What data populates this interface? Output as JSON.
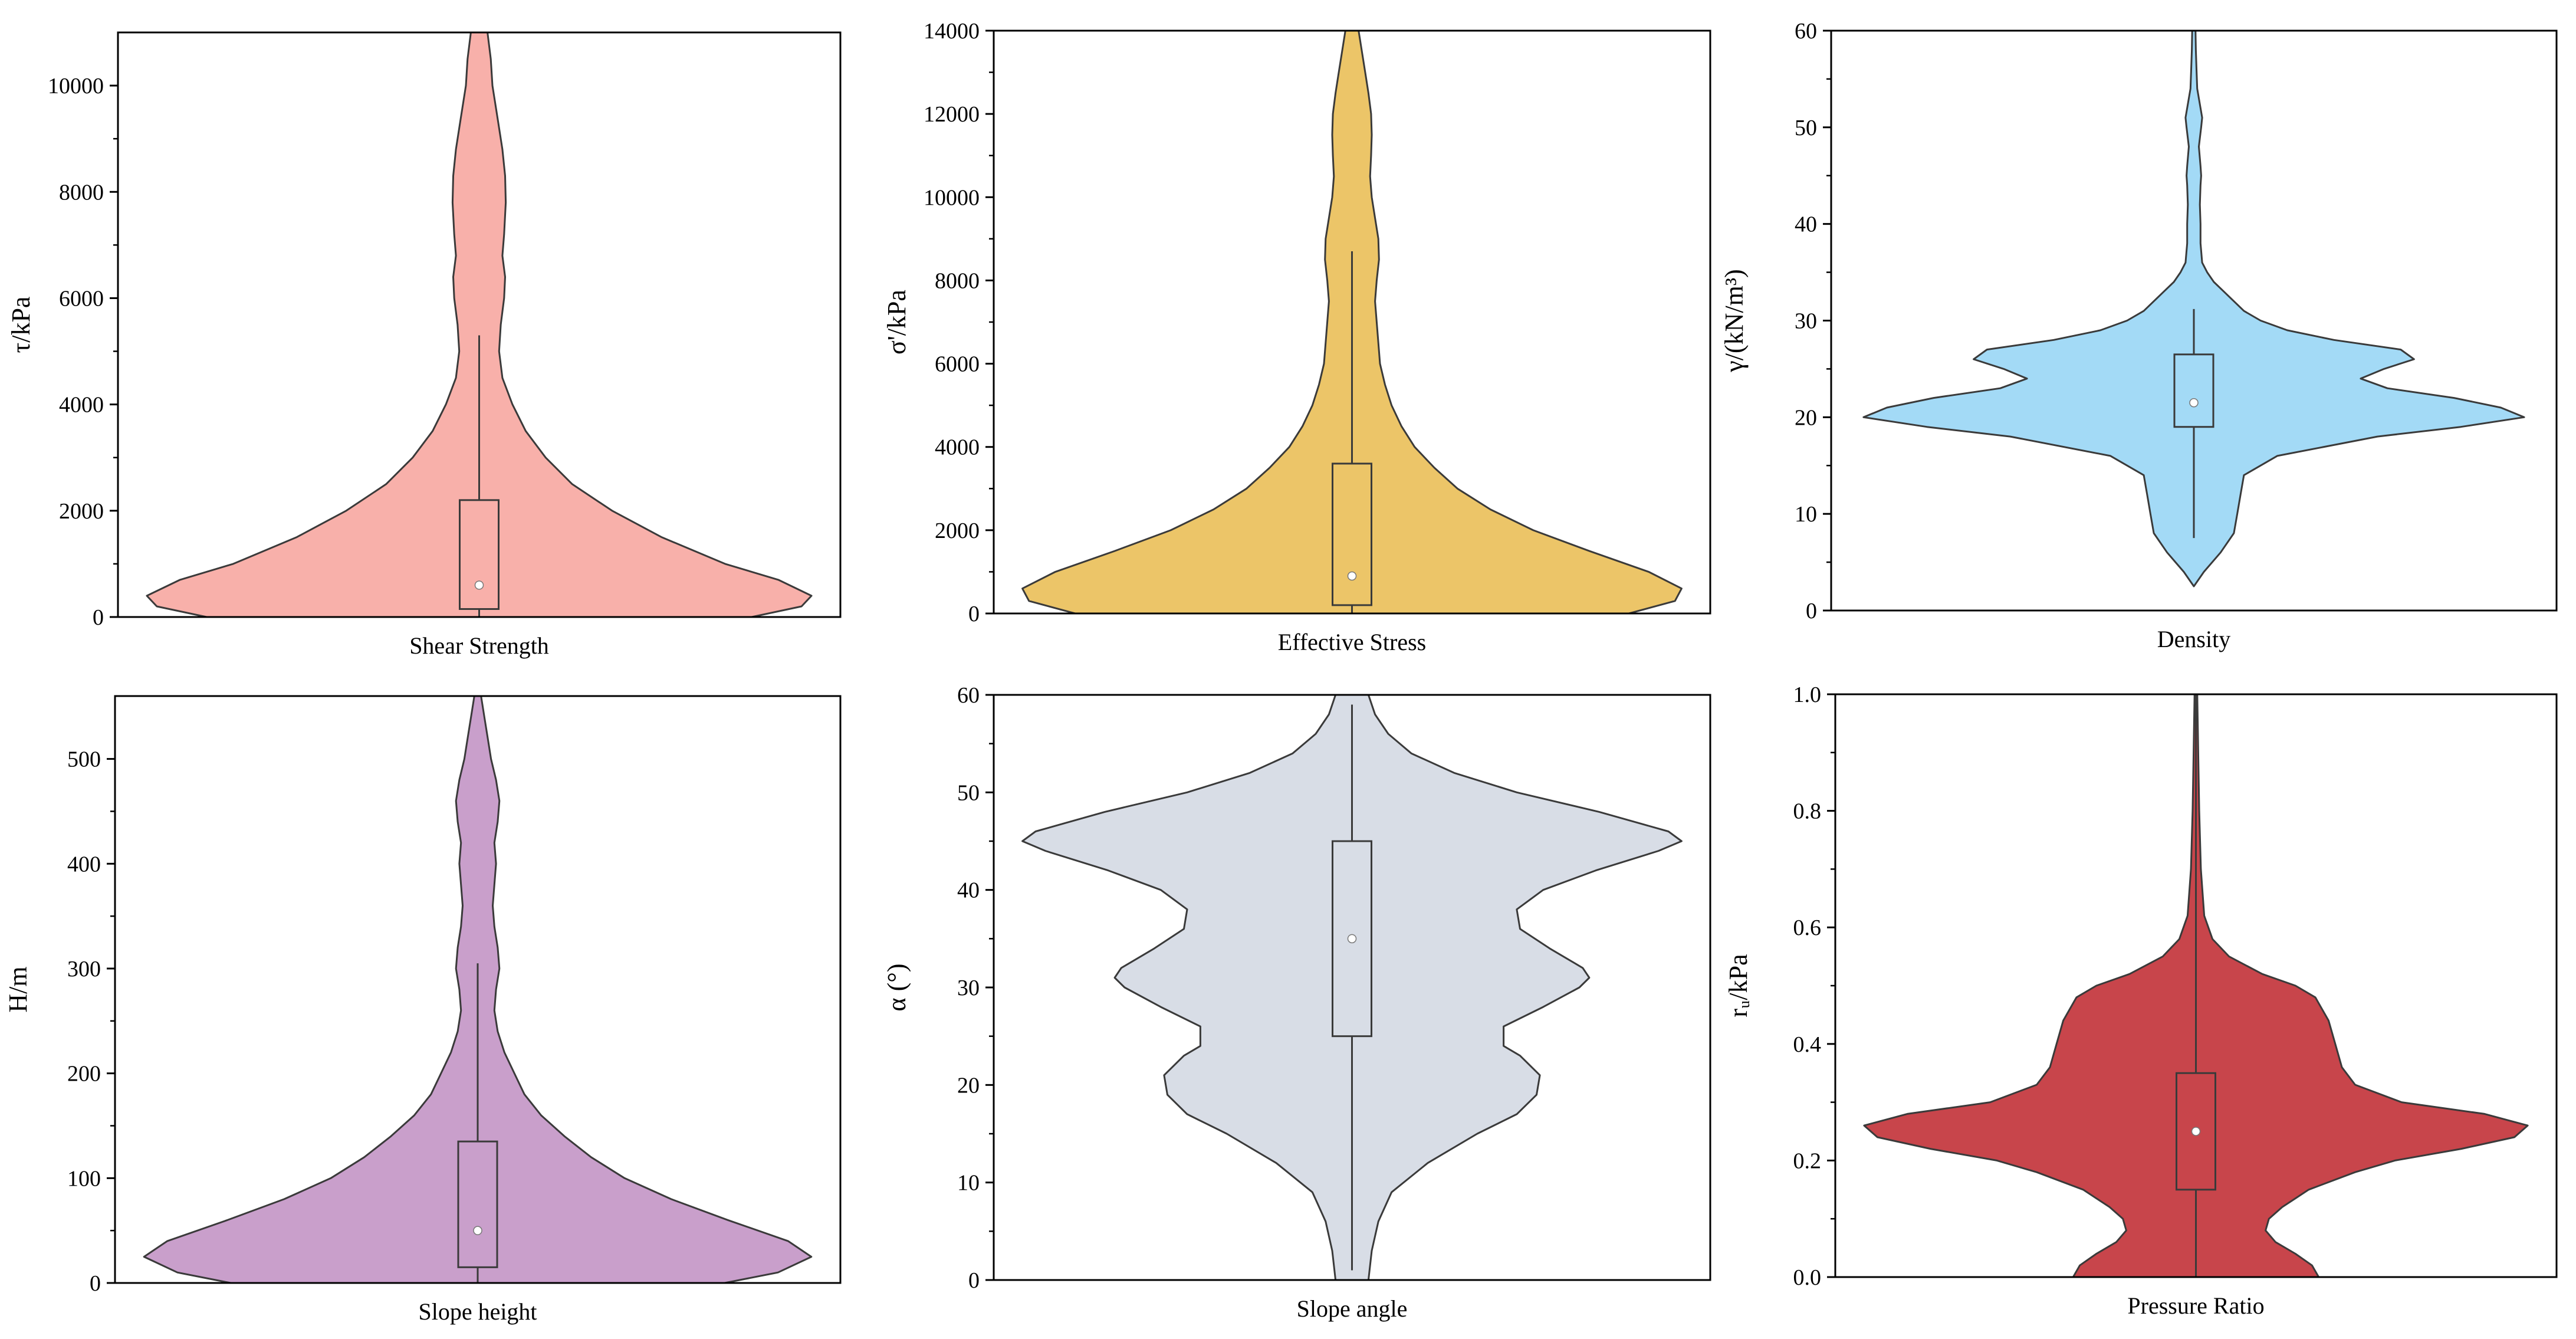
{
  "chart_data": [
    {
      "type": "violin",
      "xlabel": "Shear Strength",
      "ylabel": "τ/kPa",
      "ylim": [
        0,
        11000
      ],
      "yticks": [
        0,
        2000,
        4000,
        6000,
        8000,
        10000
      ],
      "yminor": [
        1000,
        3000,
        5000,
        7000,
        9000
      ],
      "fill": "#f8b0aa",
      "box": {
        "q1": 150,
        "median": 600,
        "q3": 2200,
        "whisker_low": 0,
        "whisker_high": 5300
      },
      "profile": [
        [
          0,
          0.82
        ],
        [
          200,
          0.97
        ],
        [
          400,
          1.0
        ],
        [
          700,
          0.9
        ],
        [
          1000,
          0.74
        ],
        [
          1500,
          0.55
        ],
        [
          2000,
          0.4
        ],
        [
          2500,
          0.28
        ],
        [
          3000,
          0.2
        ],
        [
          3500,
          0.14
        ],
        [
          4000,
          0.1
        ],
        [
          4500,
          0.07
        ],
        [
          5000,
          0.06
        ],
        [
          5500,
          0.065
        ],
        [
          6000,
          0.075
        ],
        [
          6400,
          0.078
        ],
        [
          6800,
          0.07
        ],
        [
          7200,
          0.075
        ],
        [
          7800,
          0.08
        ],
        [
          8300,
          0.078
        ],
        [
          8800,
          0.07
        ],
        [
          9400,
          0.055
        ],
        [
          10000,
          0.04
        ],
        [
          10500,
          0.035
        ],
        [
          11000,
          0.025
        ]
      ]
    },
    {
      "type": "violin",
      "xlabel": "Effective Stress",
      "ylabel": "σ'/kPa",
      "ylim": [
        0,
        14000
      ],
      "yticks": [
        0,
        2000,
        4000,
        6000,
        8000,
        10000,
        12000,
        14000
      ],
      "yminor": [
        1000,
        3000,
        5000,
        7000,
        9000,
        11000,
        13000
      ],
      "fill": "#ecc568",
      "box": {
        "q1": 200,
        "median": 900,
        "q3": 3600,
        "whisker_low": 0,
        "whisker_high": 8700
      },
      "profile": [
        [
          0,
          0.84
        ],
        [
          300,
          0.98
        ],
        [
          600,
          1.0
        ],
        [
          1000,
          0.9
        ],
        [
          1500,
          0.72
        ],
        [
          2000,
          0.55
        ],
        [
          2500,
          0.42
        ],
        [
          3000,
          0.32
        ],
        [
          3500,
          0.25
        ],
        [
          4000,
          0.19
        ],
        [
          4500,
          0.15
        ],
        [
          5000,
          0.12
        ],
        [
          5500,
          0.1
        ],
        [
          6000,
          0.085
        ],
        [
          6500,
          0.08
        ],
        [
          7000,
          0.075
        ],
        [
          7500,
          0.07
        ],
        [
          8000,
          0.075
        ],
        [
          8500,
          0.082
        ],
        [
          9000,
          0.08
        ],
        [
          9500,
          0.07
        ],
        [
          10000,
          0.06
        ],
        [
          10500,
          0.055
        ],
        [
          11000,
          0.058
        ],
        [
          11500,
          0.06
        ],
        [
          12000,
          0.058
        ],
        [
          12500,
          0.05
        ],
        [
          13000,
          0.04
        ],
        [
          13500,
          0.03
        ],
        [
          14000,
          0.02
        ]
      ]
    },
    {
      "type": "violin",
      "xlabel": "Density",
      "ylabel": "γ/(kN/m³)",
      "ylim": [
        0,
        60
      ],
      "yticks": [
        0,
        10,
        20,
        30,
        40,
        50,
        60
      ],
      "yminor": [
        5,
        15,
        25,
        35,
        45,
        55
      ],
      "fill": "#a3daf6",
      "box": {
        "q1": 19,
        "median": 21.5,
        "q3": 26.5,
        "whisker_low": 7.5,
        "whisker_high": 31.2
      },
      "profile": [
        [
          2.5,
          0.0
        ],
        [
          4,
          0.03
        ],
        [
          6,
          0.08
        ],
        [
          8,
          0.12
        ],
        [
          10,
          0.13
        ],
        [
          12,
          0.14
        ],
        [
          14,
          0.15
        ],
        [
          16,
          0.25
        ],
        [
          18,
          0.55
        ],
        [
          19,
          0.8
        ],
        [
          20,
          0.99
        ],
        [
          21,
          0.92
        ],
        [
          22,
          0.78
        ],
        [
          23,
          0.58
        ],
        [
          24,
          0.5
        ],
        [
          25,
          0.57
        ],
        [
          26,
          0.66
        ],
        [
          27,
          0.62
        ],
        [
          28,
          0.42
        ],
        [
          29,
          0.28
        ],
        [
          30,
          0.2
        ],
        [
          31,
          0.15
        ],
        [
          32,
          0.12
        ],
        [
          33,
          0.09
        ],
        [
          34,
          0.06
        ],
        [
          35,
          0.04
        ],
        [
          36,
          0.025
        ],
        [
          38,
          0.02
        ],
        [
          40,
          0.02
        ],
        [
          42,
          0.018
        ],
        [
          44,
          0.02
        ],
        [
          45,
          0.022
        ],
        [
          46,
          0.02
        ],
        [
          48,
          0.015
        ],
        [
          50,
          0.022
        ],
        [
          51,
          0.025
        ],
        [
          52,
          0.02
        ],
        [
          54,
          0.01
        ],
        [
          56,
          0.008
        ],
        [
          58,
          0.006
        ],
        [
          60,
          0.005
        ]
      ]
    },
    {
      "type": "violin",
      "xlabel": "Slope height",
      "ylabel": "H/m",
      "ylim": [
        0,
        560
      ],
      "yticks": [
        0,
        100,
        200,
        300,
        400,
        500
      ],
      "yminor": [
        50,
        150,
        250,
        350,
        450
      ],
      "fill": "#c99fcb",
      "box": {
        "q1": 15,
        "median": 50,
        "q3": 135,
        "whisker_low": 0,
        "whisker_high": 305
      },
      "profile": [
        [
          0,
          0.74
        ],
        [
          10,
          0.9
        ],
        [
          25,
          1.0
        ],
        [
          40,
          0.93
        ],
        [
          60,
          0.75
        ],
        [
          80,
          0.58
        ],
        [
          100,
          0.44
        ],
        [
          120,
          0.34
        ],
        [
          140,
          0.26
        ],
        [
          160,
          0.19
        ],
        [
          180,
          0.14
        ],
        [
          200,
          0.11
        ],
        [
          220,
          0.08
        ],
        [
          240,
          0.06
        ],
        [
          260,
          0.05
        ],
        [
          280,
          0.055
        ],
        [
          300,
          0.065
        ],
        [
          320,
          0.06
        ],
        [
          340,
          0.05
        ],
        [
          360,
          0.045
        ],
        [
          380,
          0.05
        ],
        [
          400,
          0.055
        ],
        [
          420,
          0.05
        ],
        [
          440,
          0.06
        ],
        [
          460,
          0.065
        ],
        [
          480,
          0.055
        ],
        [
          500,
          0.04
        ],
        [
          520,
          0.03
        ],
        [
          540,
          0.02
        ],
        [
          560,
          0.01
        ]
      ]
    },
    {
      "type": "violin",
      "xlabel": "Slope angle",
      "ylabel": "α (°)",
      "ylim": [
        0,
        60
      ],
      "yticks": [
        0,
        10,
        20,
        30,
        40,
        50,
        60
      ],
      "yminor": [
        5,
        15,
        25,
        35,
        45,
        55
      ],
      "fill": "#d8dde6",
      "box": {
        "q1": 25,
        "median": 35,
        "q3": 45,
        "whisker_low": 1,
        "whisker_high": 59
      },
      "profile": [
        [
          0,
          0.05
        ],
        [
          3,
          0.06
        ],
        [
          6,
          0.08
        ],
        [
          9,
          0.12
        ],
        [
          12,
          0.23
        ],
        [
          15,
          0.38
        ],
        [
          17,
          0.5
        ],
        [
          19,
          0.56
        ],
        [
          21,
          0.57
        ],
        [
          23,
          0.51
        ],
        [
          24,
          0.46
        ],
        [
          26,
          0.46
        ],
        [
          28,
          0.58
        ],
        [
          30,
          0.69
        ],
        [
          31,
          0.72
        ],
        [
          32,
          0.7
        ],
        [
          34,
          0.6
        ],
        [
          36,
          0.51
        ],
        [
          38,
          0.5
        ],
        [
          40,
          0.58
        ],
        [
          42,
          0.74
        ],
        [
          44,
          0.93
        ],
        [
          45,
          1.0
        ],
        [
          46,
          0.96
        ],
        [
          48,
          0.75
        ],
        [
          50,
          0.5
        ],
        [
          52,
          0.31
        ],
        [
          54,
          0.18
        ],
        [
          56,
          0.11
        ],
        [
          58,
          0.07
        ],
        [
          60,
          0.05
        ]
      ]
    },
    {
      "type": "violin",
      "xlabel": "Pressure Ratio",
      "ylabel": "rᵤ/kPa",
      "ylim": [
        0,
        1.0
      ],
      "yticks": [
        0.0,
        0.2,
        0.4,
        0.6,
        0.8,
        1.0
      ],
      "yminor": [
        0.1,
        0.3,
        0.5,
        0.7,
        0.9
      ],
      "fill": "#c8454b",
      "box": {
        "q1": 0.15,
        "median": 0.25,
        "q3": 0.35,
        "whisker_low": 0,
        "whisker_high": 1.0
      },
      "profile": [
        [
          0,
          0.37
        ],
        [
          0.02,
          0.35
        ],
        [
          0.04,
          0.3
        ],
        [
          0.06,
          0.24
        ],
        [
          0.08,
          0.21
        ],
        [
          0.1,
          0.22
        ],
        [
          0.12,
          0.26
        ],
        [
          0.15,
          0.34
        ],
        [
          0.18,
          0.48
        ],
        [
          0.2,
          0.6
        ],
        [
          0.22,
          0.8
        ],
        [
          0.24,
          0.96
        ],
        [
          0.26,
          1.0
        ],
        [
          0.28,
          0.87
        ],
        [
          0.3,
          0.62
        ],
        [
          0.33,
          0.48
        ],
        [
          0.36,
          0.44
        ],
        [
          0.4,
          0.42
        ],
        [
          0.44,
          0.4
        ],
        [
          0.48,
          0.36
        ],
        [
          0.5,
          0.3
        ],
        [
          0.52,
          0.2
        ],
        [
          0.55,
          0.1
        ],
        [
          0.58,
          0.05
        ],
        [
          0.62,
          0.025
        ],
        [
          0.7,
          0.015
        ],
        [
          0.8,
          0.01
        ],
        [
          0.9,
          0.007
        ],
        [
          1.0,
          0.004
        ]
      ]
    }
  ],
  "colors": {
    "outline": "#3a3a3a",
    "median_dot": "#ffffff"
  }
}
